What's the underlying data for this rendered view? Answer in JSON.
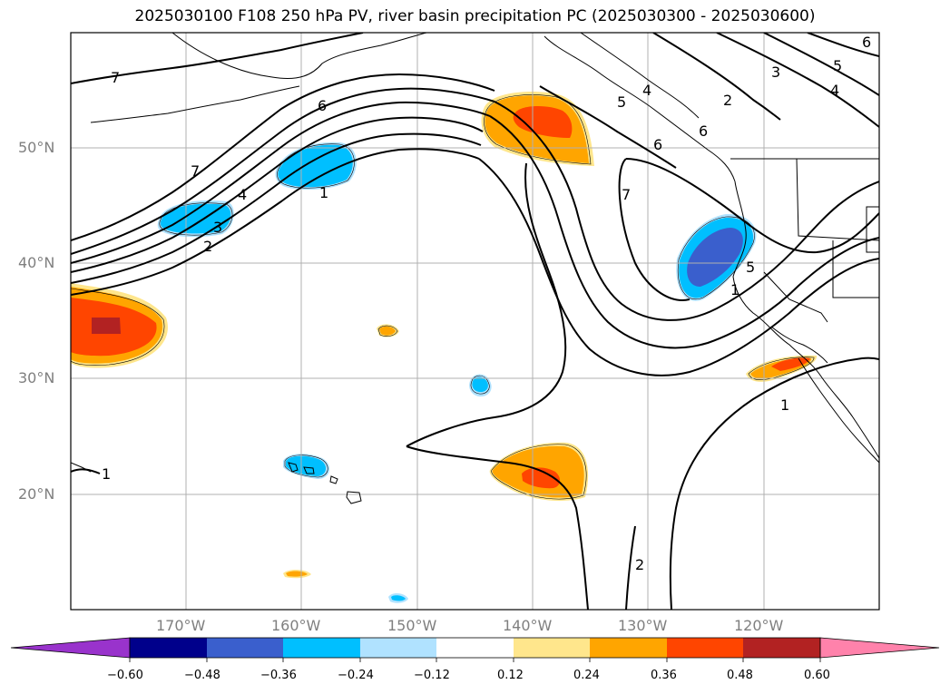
{
  "title": "2025030100 F108 250 hPa PV, river basin precipitation PC (2025030300 - 2025030600)",
  "lat_labels": [
    "50°N",
    "40°N",
    "30°N",
    "20°N"
  ],
  "lon_labels": [
    "170°W",
    "160°W",
    "150°W",
    "140°W",
    "130°W",
    "120°W"
  ],
  "contour_labels": [
    "7",
    "6",
    "7",
    "4",
    "3",
    "2",
    "1",
    "6",
    "7",
    "2",
    "4",
    "5",
    "6",
    "3",
    "2",
    "4",
    "5",
    "6",
    "5",
    "1",
    "1",
    "1"
  ],
  "colorbar": {
    "ticks": [
      "−0.60",
      "−0.48",
      "−0.36",
      "−0.24",
      "−0.12",
      "0.12",
      "0.24",
      "0.36",
      "0.48",
      "0.60"
    ],
    "colors": [
      "#9933cc",
      "#00008b",
      "#3a5fcd",
      "#00bfff",
      "#b0e2ff",
      "#ffffff",
      "#ffe68c",
      "#ffa500",
      "#ff4500",
      "#b22222",
      "#ff82ab"
    ]
  }
}
